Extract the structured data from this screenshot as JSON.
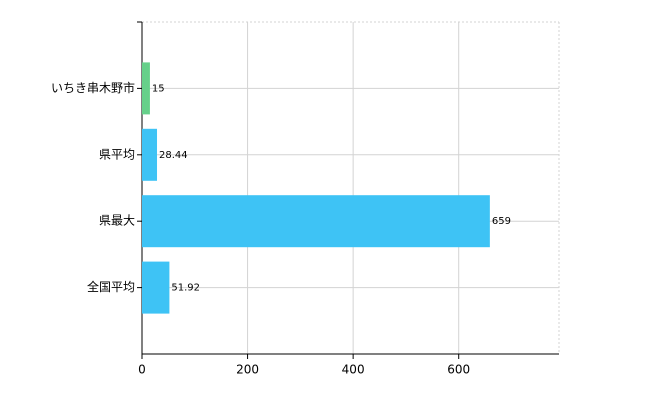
{
  "chart_data": {
    "type": "hbar",
    "categories": [
      "いちき串木野市",
      "県平均",
      "県最大",
      "全国平均"
    ],
    "values": [
      15,
      28.44,
      659,
      51.92
    ],
    "colors": [
      "#66d08a",
      "#3ec3f5",
      "#3ec3f5",
      "#3ec3f5"
    ],
    "xlim": [
      0,
      790
    ],
    "xticks": [
      0,
      200,
      400,
      600
    ],
    "grid": true
  }
}
